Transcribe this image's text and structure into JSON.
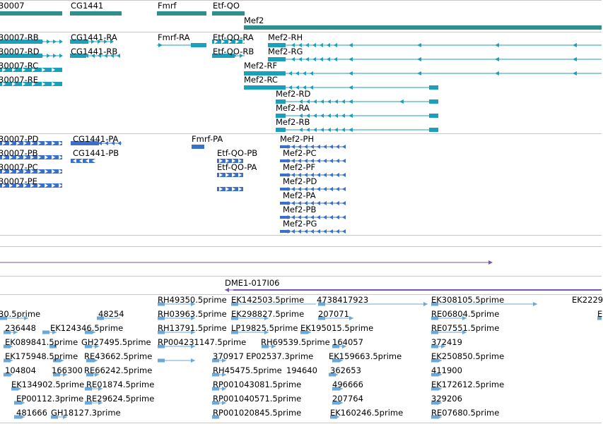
{
  "colors": {
    "gene": "#2f8e8e",
    "mrna": "#1aa0bb",
    "cds": "#3a6fcc",
    "clone": "#7a55b0",
    "est": "#6ba8d8",
    "separator": "#c8c8c8"
  },
  "genes": {
    "label_30007": "30007",
    "label_cg1441": "CG1441",
    "label_fmrf": "Fmrf",
    "label_etfqo": "Etf-QO",
    "label_mef2": "Mef2"
  },
  "transcripts": {
    "rb_30007": "30007-RB",
    "rd_30007": "30007-RD",
    "rc_30007": "30007-RC",
    "re_30007": "30007-RE",
    "cg1441_ra": "CG1441-RA",
    "cg1441_rb": "CG1441-RB",
    "fmrf_ra": "Fmrf-RA",
    "etfqo_ra": "Etf-QO-RA",
    "etfqo_rb": "Etf-QO-RB",
    "mef2_rh": "Mef2-RH",
    "mef2_rg": "Mef2-RG",
    "mef2_rf": "Mef2-RF",
    "mef2_rc": "Mef2-RC",
    "mef2_rd": "Mef2-RD",
    "mef2_ra": "Mef2-RA",
    "mef2_rb": "Mef2-RB"
  },
  "proteins": {
    "pd_30007": "30007-PD",
    "pb_30007": "30007-PB",
    "pc_30007": "30007-PC",
    "pe_30007": "30007-PE",
    "cg1441_pa": "CG1441-PA",
    "cg1441_pb": "CG1441-PB",
    "fmrf_pa": "Fmrf-PA",
    "etfqo_pb": "Etf-QO-PB",
    "etfqo_pa": "Etf-QO-PA",
    "mef2_ph": "Mef2-PH",
    "mef2_pc": "Mef2-PC",
    "mef2_pf": "Mef2-PF",
    "mef2_pd": "Mef2-PD",
    "mef2_pa": "Mef2-PA",
    "mef2_pb": "Mef2-PB",
    "mef2_pg": "Mef2-PG"
  },
  "clones": {
    "dme1": "DME1-017I06"
  },
  "ests": [
    "RH49350.5prime",
    "EK142503.5prime",
    "4738417923",
    "EK308105.5prime",
    "EK2229",
    "30.5prime",
    "48254",
    "RH03963.5prime",
    "EK298827.5prime",
    "207071",
    "RE06804.5prime",
    "E",
    "236448",
    "EK124346.5prime",
    "RH13791.5prime",
    "LP19825.5prime",
    "EK195015.5prime",
    "RE07551.5prime",
    "EK089841.5prime",
    "GH27495.5prime",
    "RP004231147.5prime",
    "RH69539.5prime",
    "164057",
    "372419",
    "EK175948.5prime",
    "RE43662.5prime",
    "370917",
    "EP02537.3prime",
    "EK159663.5prime",
    "EK250850.5prime",
    "104804",
    "166300",
    "RE66242.5prime",
    "RH45475.5prime",
    "194640",
    "362653",
    "411900",
    "EK134902.5prime",
    "RE01874.5prime",
    "RP001043081.5prime",
    "496666",
    "EK172612.5prime",
    "EP00112.3prime",
    "RE29624.5prime",
    "RP001040571.5prime",
    "207764",
    "329206",
    "481666",
    "GH18127.3prime",
    "RP001020845.5prime",
    "EK160246.5prime",
    "RE07680.5prime"
  ]
}
